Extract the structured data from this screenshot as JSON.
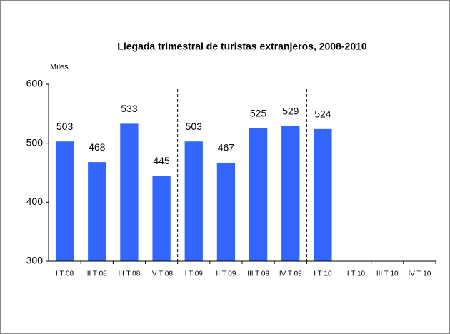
{
  "chart_data": {
    "type": "bar",
    "title": "Llegada trimestral de turistas extranjeros, 2008-2010",
    "y_label": "Miles",
    "categories": [
      "I T 08",
      "II T 08",
      "III T 08",
      "IV T 08",
      "I T 09",
      "II T 09",
      "III T 09",
      "IV T 09",
      "I T 10",
      "II T 10",
      "III T 10",
      "IV T 10"
    ],
    "values": [
      503,
      468,
      533,
      445,
      503,
      467,
      525,
      529,
      524,
      null,
      null,
      null
    ],
    "color": "#3366ff",
    "ylim": [
      300,
      600
    ],
    "yticks": [
      300,
      400,
      500,
      600
    ]
  }
}
